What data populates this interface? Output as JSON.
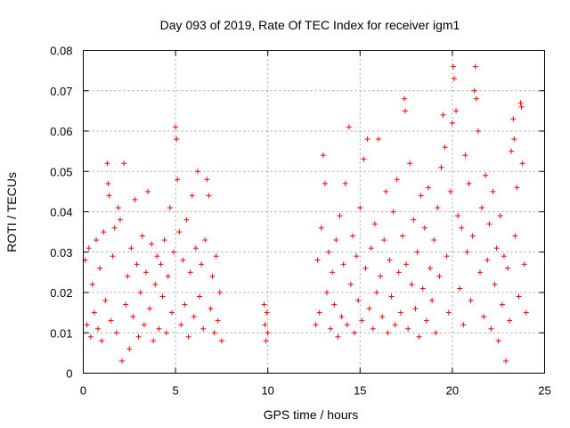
{
  "chart_data": {
    "type": "scatter",
    "title": "Day 093 of 2019, Rate Of TEC Index for receiver igm1",
    "xlabel": "GPS time / hours",
    "ylabel": "ROTI / TECUs",
    "xlim": [
      0,
      25
    ],
    "ylim": [
      0,
      0.08
    ],
    "xticks": [
      0,
      5,
      10,
      15,
      20,
      25
    ],
    "yticks": [
      0,
      0.01,
      0.02,
      0.03,
      0.04,
      0.05,
      0.06,
      0.07,
      0.08
    ],
    "xtick_labels": [
      "0",
      "5",
      "10",
      "15",
      "20",
      "25"
    ],
    "ytick_labels": [
      "0",
      "0.01",
      "0.02",
      "0.03",
      "0.04",
      "0.05",
      "0.06",
      "0.07",
      "0.08"
    ],
    "grid": true,
    "marker": "+",
    "color": "#ff0000",
    "series": [
      {
        "name": "ROTI",
        "points": [
          [
            0.1,
            0.028
          ],
          [
            0.2,
            0.012
          ],
          [
            0.3,
            0.031
          ],
          [
            0.4,
            0.009
          ],
          [
            0.5,
            0.022
          ],
          [
            0.6,
            0.015
          ],
          [
            0.7,
            0.033
          ],
          [
            0.8,
            0.011
          ],
          [
            0.9,
            0.026
          ],
          [
            1.0,
            0.008
          ],
          [
            1.1,
            0.035
          ],
          [
            1.2,
            0.018
          ],
          [
            1.3,
            0.052
          ],
          [
            1.35,
            0.047
          ],
          [
            1.4,
            0.044
          ],
          [
            1.5,
            0.013
          ],
          [
            1.6,
            0.029
          ],
          [
            1.7,
            0.036
          ],
          [
            1.8,
            0.01
          ],
          [
            1.9,
            0.041
          ],
          [
            2.0,
            0.038
          ],
          [
            2.1,
            0.003
          ],
          [
            2.2,
            0.052
          ],
          [
            2.3,
            0.017
          ],
          [
            2.4,
            0.024
          ],
          [
            2.5,
            0.006
          ],
          [
            2.6,
            0.031
          ],
          [
            2.7,
            0.014
          ],
          [
            2.8,
            0.043
          ],
          [
            2.9,
            0.027
          ],
          [
            3.0,
            0.009
          ],
          [
            3.1,
            0.02
          ],
          [
            3.2,
            0.034
          ],
          [
            3.3,
            0.012
          ],
          [
            3.4,
            0.025
          ],
          [
            3.5,
            0.045
          ],
          [
            3.6,
            0.016
          ],
          [
            3.7,
            0.032
          ],
          [
            3.8,
            0.008
          ],
          [
            3.9,
            0.022
          ],
          [
            4.0,
            0.029
          ],
          [
            4.1,
            0.011
          ],
          [
            4.2,
            0.027
          ],
          [
            4.3,
            0.019
          ],
          [
            4.4,
            0.033
          ],
          [
            4.5,
            0.01
          ],
          [
            4.6,
            0.024
          ],
          [
            4.7,
            0.041
          ],
          [
            4.8,
            0.015
          ],
          [
            4.9,
            0.03
          ],
          [
            5.0,
            0.061
          ],
          [
            5.05,
            0.058
          ],
          [
            5.1,
            0.048
          ],
          [
            5.2,
            0.035
          ],
          [
            5.3,
            0.012
          ],
          [
            5.4,
            0.028
          ],
          [
            5.5,
            0.017
          ],
          [
            5.6,
            0.038
          ],
          [
            5.7,
            0.009
          ],
          [
            5.8,
            0.025
          ],
          [
            5.9,
            0.044
          ],
          [
            6.0,
            0.014
          ],
          [
            6.1,
            0.031
          ],
          [
            6.2,
            0.05
          ],
          [
            6.3,
            0.019
          ],
          [
            6.4,
            0.027
          ],
          [
            6.5,
            0.011
          ],
          [
            6.6,
            0.033
          ],
          [
            6.7,
            0.048
          ],
          [
            6.8,
            0.044
          ],
          [
            6.9,
            0.016
          ],
          [
            7.0,
            0.024
          ],
          [
            7.1,
            0.01
          ],
          [
            7.2,
            0.029
          ],
          [
            7.3,
            0.013
          ],
          [
            7.4,
            0.02
          ],
          [
            7.5,
            0.008
          ],
          [
            9.8,
            0.017
          ],
          [
            9.85,
            0.012
          ],
          [
            9.9,
            0.008
          ],
          [
            9.95,
            0.015
          ],
          [
            10.0,
            0.01
          ],
          [
            12.6,
            0.012
          ],
          [
            12.7,
            0.028
          ],
          [
            12.8,
            0.015
          ],
          [
            12.9,
            0.036
          ],
          [
            13.0,
            0.054
          ],
          [
            13.1,
            0.047
          ],
          [
            13.2,
            0.02
          ],
          [
            13.3,
            0.03
          ],
          [
            13.4,
            0.011
          ],
          [
            13.5,
            0.025
          ],
          [
            13.6,
            0.017
          ],
          [
            13.7,
            0.033
          ],
          [
            13.8,
            0.009
          ],
          [
            13.9,
            0.039
          ],
          [
            14.0,
            0.014
          ],
          [
            14.1,
            0.027
          ],
          [
            14.2,
            0.047
          ],
          [
            14.3,
            0.012
          ],
          [
            14.4,
            0.061
          ],
          [
            14.5,
            0.022
          ],
          [
            14.6,
            0.034
          ],
          [
            14.7,
            0.01
          ],
          [
            14.8,
            0.029
          ],
          [
            14.9,
            0.018
          ],
          [
            15.0,
            0.041
          ],
          [
            15.1,
            0.013
          ],
          [
            15.2,
            0.053
          ],
          [
            15.3,
            0.026
          ],
          [
            15.4,
            0.058
          ],
          [
            15.5,
            0.016
          ],
          [
            15.6,
            0.031
          ],
          [
            15.7,
            0.011
          ],
          [
            15.8,
            0.037
          ],
          [
            15.9,
            0.02
          ],
          [
            16.0,
            0.058
          ],
          [
            16.1,
            0.024
          ],
          [
            16.2,
            0.014
          ],
          [
            16.3,
            0.033
          ],
          [
            16.4,
            0.045
          ],
          [
            16.5,
            0.01
          ],
          [
            16.6,
            0.028
          ],
          [
            16.7,
            0.019
          ],
          [
            16.8,
            0.04
          ],
          [
            16.9,
            0.012
          ],
          [
            17.0,
            0.048
          ],
          [
            17.1,
            0.025
          ],
          [
            17.2,
            0.015
          ],
          [
            17.3,
            0.034
          ],
          [
            17.4,
            0.068
          ],
          [
            17.45,
            0.065
          ],
          [
            17.5,
            0.027
          ],
          [
            17.6,
            0.011
          ],
          [
            17.7,
            0.052
          ],
          [
            17.8,
            0.022
          ],
          [
            17.9,
            0.038
          ],
          [
            18.0,
            0.016
          ],
          [
            18.1,
            0.03
          ],
          [
            18.2,
            0.009
          ],
          [
            18.3,
            0.044
          ],
          [
            18.4,
            0.021
          ],
          [
            18.5,
            0.036
          ],
          [
            18.6,
            0.013
          ],
          [
            18.7,
            0.046
          ],
          [
            18.8,
            0.026
          ],
          [
            18.9,
            0.018
          ],
          [
            19.0,
            0.033
          ],
          [
            19.1,
            0.01
          ],
          [
            19.2,
            0.041
          ],
          [
            19.3,
            0.024
          ],
          [
            19.4,
            0.051
          ],
          [
            19.5,
            0.064
          ],
          [
            19.6,
            0.056
          ],
          [
            19.7,
            0.029
          ],
          [
            19.8,
            0.015
          ],
          [
            19.9,
            0.045
          ],
          [
            20.0,
            0.062
          ],
          [
            20.05,
            0.076
          ],
          [
            20.1,
            0.073
          ],
          [
            20.2,
            0.065
          ],
          [
            20.3,
            0.039
          ],
          [
            20.4,
            0.021
          ],
          [
            20.5,
            0.036
          ],
          [
            20.6,
            0.012
          ],
          [
            20.7,
            0.054
          ],
          [
            20.8,
            0.03
          ],
          [
            20.9,
            0.047
          ],
          [
            21.0,
            0.018
          ],
          [
            21.1,
            0.034
          ],
          [
            21.2,
            0.07
          ],
          [
            21.25,
            0.076
          ],
          [
            21.3,
            0.068
          ],
          [
            21.4,
            0.06
          ],
          [
            21.5,
            0.025
          ],
          [
            21.6,
            0.041
          ],
          [
            21.7,
            0.014
          ],
          [
            21.8,
            0.049
          ],
          [
            21.9,
            0.028
          ],
          [
            22.0,
            0.037
          ],
          [
            22.1,
            0.011
          ],
          [
            22.2,
            0.045
          ],
          [
            22.3,
            0.022
          ],
          [
            22.4,
            0.031
          ],
          [
            22.5,
            0.008
          ],
          [
            22.6,
            0.039
          ],
          [
            22.7,
            0.017
          ],
          [
            22.8,
            0.029
          ],
          [
            22.9,
            0.003
          ],
          [
            23.0,
            0.026
          ],
          [
            23.1,
            0.013
          ],
          [
            23.2,
            0.055
          ],
          [
            23.3,
            0.063
          ],
          [
            23.35,
            0.058
          ],
          [
            23.4,
            0.034
          ],
          [
            23.5,
            0.046
          ],
          [
            23.6,
            0.019
          ],
          [
            23.7,
            0.067
          ],
          [
            23.75,
            0.066
          ],
          [
            23.8,
            0.052
          ],
          [
            23.9,
            0.027
          ],
          [
            24.0,
            0.015
          ]
        ]
      }
    ]
  }
}
